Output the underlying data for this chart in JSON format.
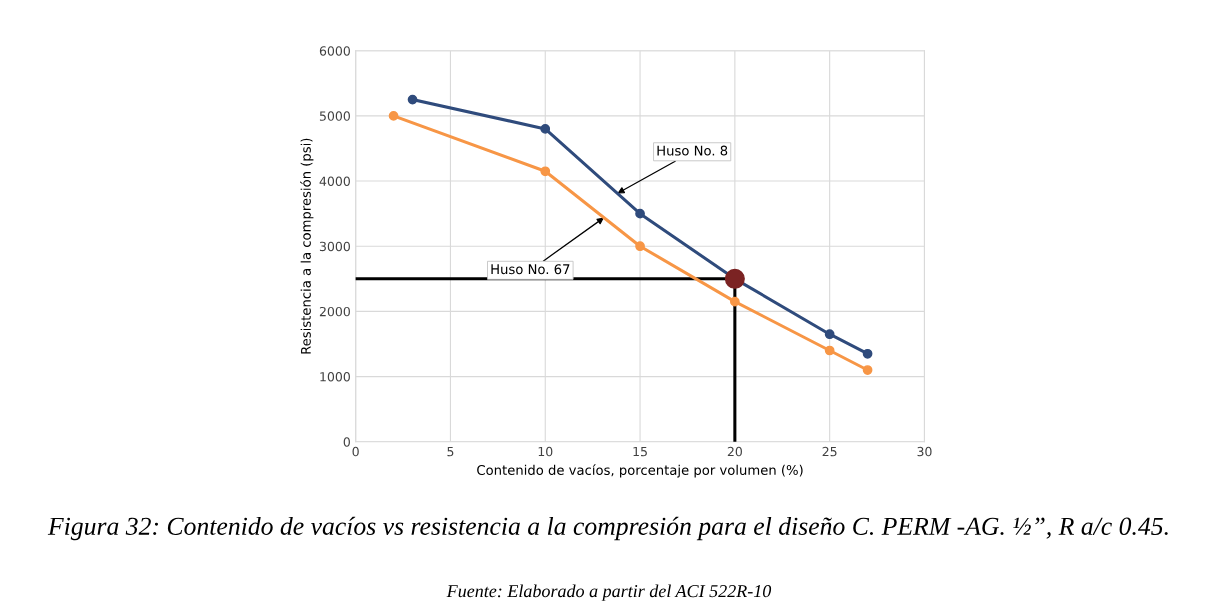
{
  "chart_data": {
    "type": "line",
    "title": "Figura 32: Contenido de vacíos vs resistencia a la compresión para el diseño C. PERM -AG. ½”, R a/c 0.45.",
    "xlabel": "Contenido de vacíos, porcentaje por volumen (%)",
    "ylabel": "Resistencia a la compresión (psi)",
    "series": [
      {
        "color": "#2f4b7c",
        "x": [
          3,
          10,
          15,
          20,
          25,
          27
        ],
        "values": [
          5250,
          4800,
          3500,
          2500,
          1650,
          1350
        ]
      },
      {
        "color": "#f79646",
        "x": [
          2,
          10,
          15,
          20,
          25,
          27
        ],
        "values": [
          5000,
          4150,
          3000,
          2150,
          1400,
          1100
        ]
      },
      {
        "color": "#000000",
        "x": [
          0,
          20,
          20
        ],
        "values": [
          2500,
          2500,
          0
        ],
        "marker": "none"
      },
      {
        "type": "scatter",
        "color": "#7b2323",
        "x": [
          20
        ],
        "values": [
          2500
        ]
      }
    ],
    "annotations": [
      {
        "text": "Huso No. 8",
        "x": 13.8,
        "y": 3810
      },
      {
        "text": "Huso No. 67",
        "x": 13.1,
        "y": 3440
      },
      "Fuente: Elaborado a partir del ACI 522R-10"
    ],
    "xlim": [
      0,
      30
    ],
    "xticks": [
      0,
      5,
      10,
      15,
      20,
      25,
      30
    ],
    "ylim": [
      0,
      6000
    ],
    "yticks": [
      0,
      1000,
      2000,
      3000,
      4000,
      5000,
      6000
    ],
    "grid": true,
    "marker": "circle",
    "line_style": "solid",
    "legend": false
  }
}
